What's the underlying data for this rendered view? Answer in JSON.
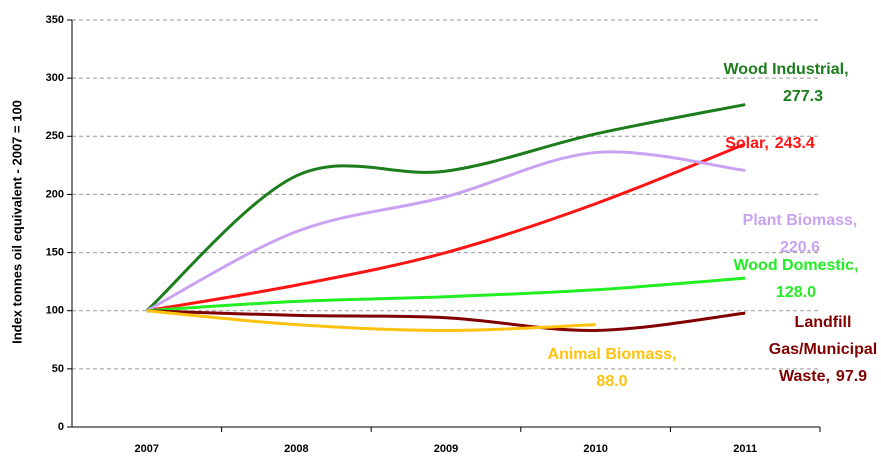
{
  "chart_data": {
    "type": "line",
    "y_label": "Index tonnes oil equivalent - 2007 = 100",
    "categories": [
      "2007",
      "2008",
      "2009",
      "2010",
      "2011"
    ],
    "ylim": [
      0,
      350
    ],
    "yticks": [
      0,
      50,
      100,
      150,
      200,
      250,
      300,
      350
    ],
    "grid": true,
    "series": [
      {
        "name": [
          "Wood Industrial,"
        ],
        "color": "#1b7d1b",
        "values": [
          100,
          216,
          220,
          252,
          277.3
        ],
        "value_labels": [
          null,
          null,
          null,
          null,
          "277.3"
        ]
      },
      {
        "name": [
          "Solar,"
        ],
        "color": "#ff1414",
        "values": [
          100,
          122,
          150,
          192,
          243.4
        ],
        "value_labels": [
          null,
          null,
          null,
          null,
          "243.4"
        ]
      },
      {
        "name": [
          "Plant Biomass,"
        ],
        "color": "#c9a3f2",
        "values": [
          100,
          168,
          198,
          236,
          220.6
        ],
        "value_labels": [
          null,
          null,
          null,
          null,
          "220.6"
        ]
      },
      {
        "name": [
          "Wood Domestic,"
        ],
        "color": "#22ee22",
        "values": [
          100,
          108,
          112,
          118,
          128.0
        ],
        "value_labels": [
          null,
          null,
          null,
          null,
          "128.0"
        ]
      },
      {
        "name": [
          "Landfill",
          "Gas/Municipal",
          "Waste,"
        ],
        "color": "#800000",
        "values": [
          100,
          96,
          94,
          83,
          97.9
        ],
        "value_labels": [
          null,
          null,
          null,
          null,
          "97.9"
        ]
      },
      {
        "name": [
          "Animal Biomass,"
        ],
        "color": "#ffc20e",
        "values": [
          100,
          88,
          83,
          88.0,
          null
        ],
        "value_labels": [
          null,
          null,
          null,
          "88.0",
          null
        ]
      }
    ]
  }
}
